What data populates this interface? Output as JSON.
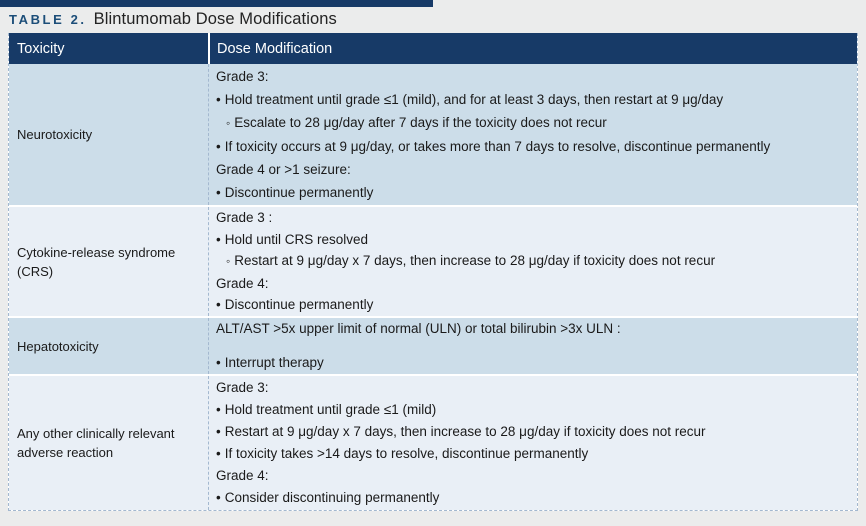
{
  "colors": {
    "page_background": "#ebecec",
    "header_navy": "#173a67",
    "title_navy": "#1c4e79",
    "row_light_blue": "#ccdde9",
    "row_pale_blue": "#e9eff6",
    "dashed_border": "#a3b8cf",
    "header_text": "#ffffff",
    "body_text": "#1a1a1a"
  },
  "glyphs": {
    "bullet": "•",
    "subbullet": "◦"
  },
  "title": {
    "label": "TABLE 2.",
    "text": "Blintumomab Dose Modifications"
  },
  "table": {
    "columns": [
      "Toxicity",
      "Dose Modification"
    ],
    "rows": [
      {
        "toxicity": "Neurotoxicity",
        "lines": [
          {
            "type": "plain",
            "text": "Grade 3:"
          },
          {
            "type": "bullet",
            "text": "Hold treatment until grade ≤1 (mild), and for at least 3 days, then restart at 9 μg/day"
          },
          {
            "type": "subbullet",
            "text": "Escalate to 28 μg/day after 7 days if the toxicity does not recur"
          },
          {
            "type": "bullet",
            "text": "If toxicity occurs at 9 μg/day, or takes more than 7 days to resolve, discontinue permanently"
          },
          {
            "type": "plain",
            "text": "Grade 4 or >1 seizure:"
          },
          {
            "type": "bullet",
            "text": "Discontinue permanently"
          }
        ]
      },
      {
        "toxicity": "Cytokine-release syndrome (CRS)",
        "lines": [
          {
            "type": "plain",
            "text": "Grade 3 :"
          },
          {
            "type": "bullet",
            "text": "Hold until CRS resolved"
          },
          {
            "type": "subbullet",
            "text": "Restart at 9 μg/day x 7 days, then increase to 28 μg/day if toxicity does not recur"
          },
          {
            "type": "plain",
            "text": "Grade 4:"
          },
          {
            "type": "bullet",
            "text": "Discontinue permanently"
          }
        ]
      },
      {
        "toxicity": "Hepatotoxicity",
        "lines": [
          {
            "type": "plain",
            "text": "ALT/AST >5x upper limit of normal (ULN) or total bilirubin >3x ULN :"
          },
          {
            "type": "spacer",
            "text": ""
          },
          {
            "type": "bullet",
            "text": "Interrupt therapy"
          }
        ]
      },
      {
        "toxicity": "Any other clinically relevant adverse reaction",
        "lines": [
          {
            "type": "plain",
            "text": "Grade 3:"
          },
          {
            "type": "bullet",
            "text": "Hold treatment until grade ≤1 (mild)"
          },
          {
            "type": "bullet",
            "text": "Restart at 9 μg/day x 7 days, then increase to 28 μg/day if toxicity does not recur"
          },
          {
            "type": "bullet",
            "text": "If toxicity takes >14 days to resolve, discontinue permanently"
          },
          {
            "type": "plain",
            "text": "Grade 4:"
          },
          {
            "type": "bullet",
            "text": "Consider discontinuing permanently"
          }
        ]
      }
    ]
  }
}
